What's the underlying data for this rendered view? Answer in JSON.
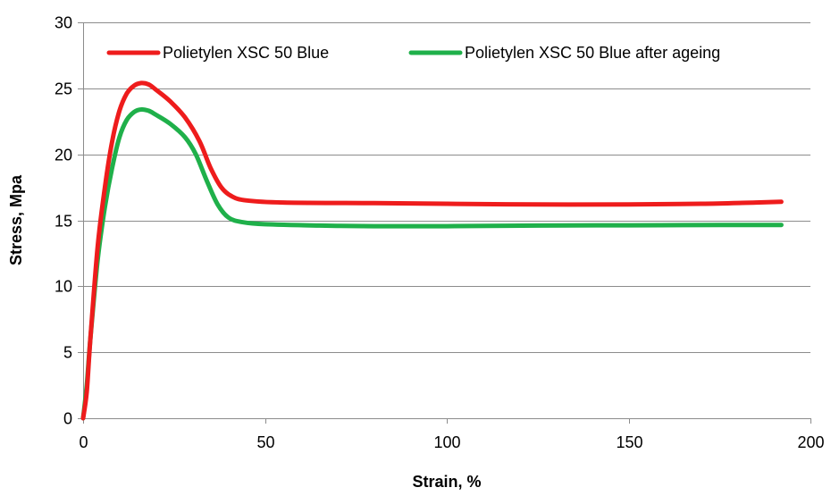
{
  "chart_data": {
    "type": "line",
    "title": "",
    "xlabel": "Strain, %",
    "ylabel": "Stress, Mpa",
    "xlim": [
      0,
      200
    ],
    "ylim": [
      0,
      30
    ],
    "xticks": [
      0,
      50,
      100,
      150,
      200
    ],
    "yticks": [
      0,
      5,
      10,
      15,
      20,
      25,
      30
    ],
    "grid": "horizontal",
    "legend_position": "top",
    "series": [
      {
        "name": "Polietylen XSC 50 Blue",
        "color": "#ee1c1c",
        "points": [
          [
            0,
            0
          ],
          [
            1,
            2
          ],
          [
            2,
            6
          ],
          [
            4,
            13
          ],
          [
            6,
            17.5
          ],
          [
            8,
            21
          ],
          [
            10,
            23.3
          ],
          [
            12,
            24.6
          ],
          [
            14,
            25.2
          ],
          [
            16,
            25.4
          ],
          [
            18,
            25.3
          ],
          [
            20,
            24.9
          ],
          [
            24,
            24
          ],
          [
            28,
            22.8
          ],
          [
            32,
            21
          ],
          [
            35,
            19
          ],
          [
            38,
            17.5
          ],
          [
            41,
            16.8
          ],
          [
            45,
            16.5
          ],
          [
            55,
            16.35
          ],
          [
            80,
            16.3
          ],
          [
            100,
            16.25
          ],
          [
            125,
            16.2
          ],
          [
            150,
            16.2
          ],
          [
            170,
            16.25
          ],
          [
            185,
            16.35
          ],
          [
            192,
            16.4
          ]
        ]
      },
      {
        "name": "Polietylen XSC 50 Blue after ageing",
        "color": "#1fb04a",
        "points": [
          [
            0,
            0
          ],
          [
            1,
            2.5
          ],
          [
            2,
            6
          ],
          [
            4,
            12
          ],
          [
            6,
            16
          ],
          [
            8,
            19
          ],
          [
            10,
            21.3
          ],
          [
            12,
            22.6
          ],
          [
            14,
            23.2
          ],
          [
            16,
            23.4
          ],
          [
            18,
            23.3
          ],
          [
            20,
            23
          ],
          [
            24,
            22.3
          ],
          [
            28,
            21.3
          ],
          [
            31,
            20
          ],
          [
            34,
            18
          ],
          [
            37,
            16.2
          ],
          [
            40,
            15.2
          ],
          [
            44,
            14.85
          ],
          [
            50,
            14.7
          ],
          [
            65,
            14.6
          ],
          [
            80,
            14.55
          ],
          [
            100,
            14.55
          ],
          [
            125,
            14.6
          ],
          [
            150,
            14.62
          ],
          [
            175,
            14.65
          ],
          [
            192,
            14.65
          ]
        ]
      }
    ]
  }
}
